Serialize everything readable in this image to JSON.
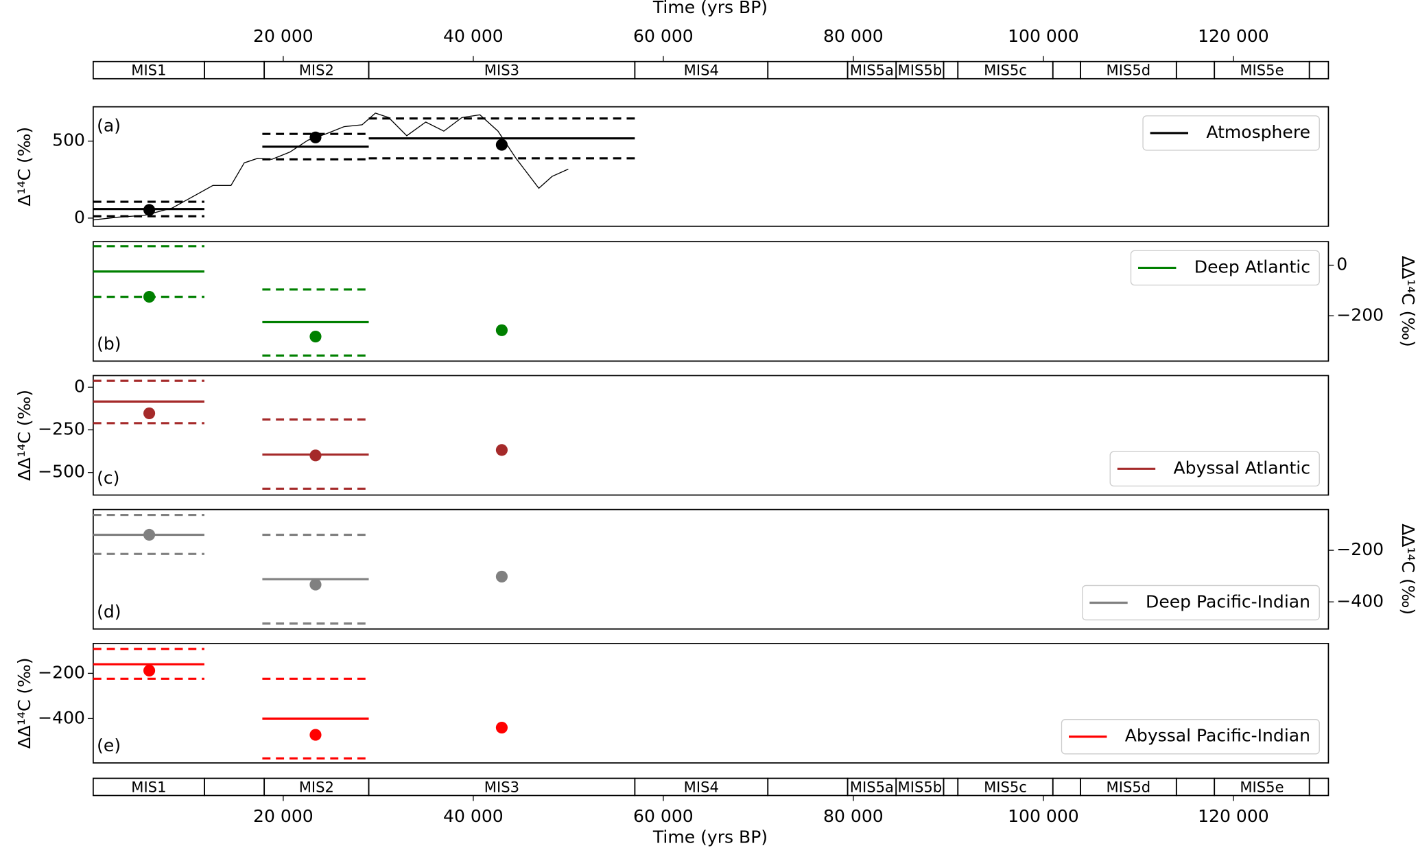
{
  "chart_data": {
    "type": "panels",
    "xlabel": "Time (yrs BP)",
    "xlim": [
      0,
      130000
    ],
    "xticks": [
      {
        "value": 20000,
        "label": "20 000"
      },
      {
        "value": 40000,
        "label": "40 000"
      },
      {
        "value": 60000,
        "label": "60 000"
      },
      {
        "value": 80000,
        "label": "80 000"
      },
      {
        "value": 100000,
        "label": "100 000"
      },
      {
        "value": 120000,
        "label": "120 000"
      }
    ],
    "stages": {
      "labels": [
        "MIS1",
        null,
        "MIS2",
        "MIS3",
        "MIS4",
        null,
        "MIS5a",
        "MIS5b",
        null,
        "MIS5c",
        null,
        "MIS5d",
        null,
        "MIS5e",
        null
      ],
      "start": [
        0,
        11700,
        18000,
        29000,
        57000,
        71000,
        79400,
        84500,
        89500,
        91000,
        101000,
        103900,
        114000,
        118000,
        128000
      ],
      "end": [
        11700,
        18000,
        29000,
        57000,
        71000,
        79400,
        84500,
        89500,
        91000,
        101000,
        103900,
        114000,
        118000,
        128000,
        130000
      ]
    },
    "panels": [
      {
        "label": "(a)",
        "name": "Atmosphere",
        "color": "#000000",
        "ylabel": "Δ¹⁴C (‰)",
        "yaxis_side": "left",
        "legend": "upper right",
        "ylim": [
          -53,
          723
        ],
        "yticks": [
          0,
          500
        ],
        "segments": {
          "start": [
            0,
            17800,
            29000
          ],
          "end": [
            11700,
            29000,
            57000
          ],
          "mean": [
            59,
            464,
            518
          ],
          "upper": [
            106,
            547,
            647
          ],
          "lower": [
            12,
            382,
            388
          ]
        },
        "points": {
          "x": [
            5900,
            23400,
            43000
          ],
          "y": [
            53,
            524,
            476
          ]
        },
        "curve": {
          "x": [
            0,
            2600,
            5400,
            8300,
            10700,
            12600,
            14500,
            15900,
            17300,
            18800,
            20700,
            22600,
            24500,
            26400,
            28300,
            29700,
            31100,
            33000,
            35000,
            36900,
            38800,
            40700,
            42600,
            44500,
            46900,
            48300,
            50000
          ],
          "y": [
            -12,
            6,
            18,
            65,
            147,
            212,
            212,
            359,
            388,
            382,
            429,
            506,
            547,
            594,
            606,
            682,
            653,
            535,
            624,
            565,
            653,
            671,
            565,
            388,
            194,
            271,
            318
          ]
        }
      },
      {
        "label": "(b)",
        "name": "Deep Atlantic",
        "color": "#008000",
        "ylabel": "ΔΔ¹⁴C (‰)",
        "yaxis_side": "right",
        "legend": "upper right",
        "ylim": [
          -379,
          93
        ],
        "yticks": [
          {
            "value": 0,
            "label": "0"
          },
          {
            "value": -200,
            "label": "−200"
          }
        ],
        "segments": {
          "start": [
            0,
            17800
          ],
          "end": [
            11700,
            29000
          ],
          "mean": [
            -25,
            -225
          ],
          "upper": [
            75,
            -96
          ],
          "lower": [
            -125,
            -357
          ]
        },
        "points": {
          "x": [
            5900,
            23400,
            43000
          ],
          "y": [
            -125,
            -282,
            -257
          ]
        }
      },
      {
        "label": "(c)",
        "name": "Abyssal Atlantic",
        "color": "#a52a2a",
        "ylabel": "ΔΔ¹⁴C (‰)",
        "yaxis_side": "left",
        "legend": "lower right",
        "ylim": [
          -632,
          68
        ],
        "yticks": [
          {
            "value": 0,
            "label": "0"
          },
          {
            "value": -250,
            "label": "−250"
          },
          {
            "value": -500,
            "label": "−500"
          }
        ],
        "segments": {
          "start": [
            0,
            17800
          ],
          "end": [
            11700,
            29000
          ],
          "mean": [
            -84,
            -395
          ],
          "upper": [
            37,
            -189
          ],
          "lower": [
            -211,
            -595
          ]
        },
        "points": {
          "x": [
            5900,
            23400,
            43000
          ],
          "y": [
            -153,
            -400,
            -368
          ]
        }
      },
      {
        "label": "(d)",
        "name": "Deep Pacific-Indian",
        "color": "#808080",
        "ylabel": "ΔΔ¹⁴C (‰)",
        "yaxis_side": "right",
        "legend": "lower right",
        "ylim": [
          -505,
          -42
        ],
        "yticks": [
          {
            "value": -200,
            "label": "−200"
          },
          {
            "value": -400,
            "label": "−400"
          }
        ],
        "segments": {
          "start": [
            0,
            17800
          ],
          "end": [
            11700,
            29000
          ],
          "mean": [
            -140,
            -312
          ],
          "upper": [
            -63,
            -140
          ],
          "lower": [
            -214,
            -484
          ]
        },
        "points": {
          "x": [
            5900,
            23400,
            43000
          ],
          "y": [
            -140,
            -333,
            -302
          ]
        }
      },
      {
        "label": "(e)",
        "name": "Abyssal Pacific-Indian",
        "color": "#ff0000",
        "ylabel": "ΔΔ¹⁴C (‰)",
        "yaxis_side": "left",
        "legend": "lower right",
        "ylim": [
          -596,
          -68
        ],
        "yticks": [
          {
            "value": -200,
            "label": "−200"
          },
          {
            "value": -400,
            "label": "−400"
          }
        ],
        "segments": {
          "start": [
            0,
            17800
          ],
          "end": [
            11700,
            29000
          ],
          "mean": [
            -160,
            -400
          ],
          "upper": [
            -92,
            -224
          ],
          "lower": [
            -224,
            -576
          ]
        },
        "points": {
          "x": [
            5900,
            23400,
            43000
          ],
          "y": [
            -188,
            -472,
            -440
          ]
        }
      }
    ]
  }
}
